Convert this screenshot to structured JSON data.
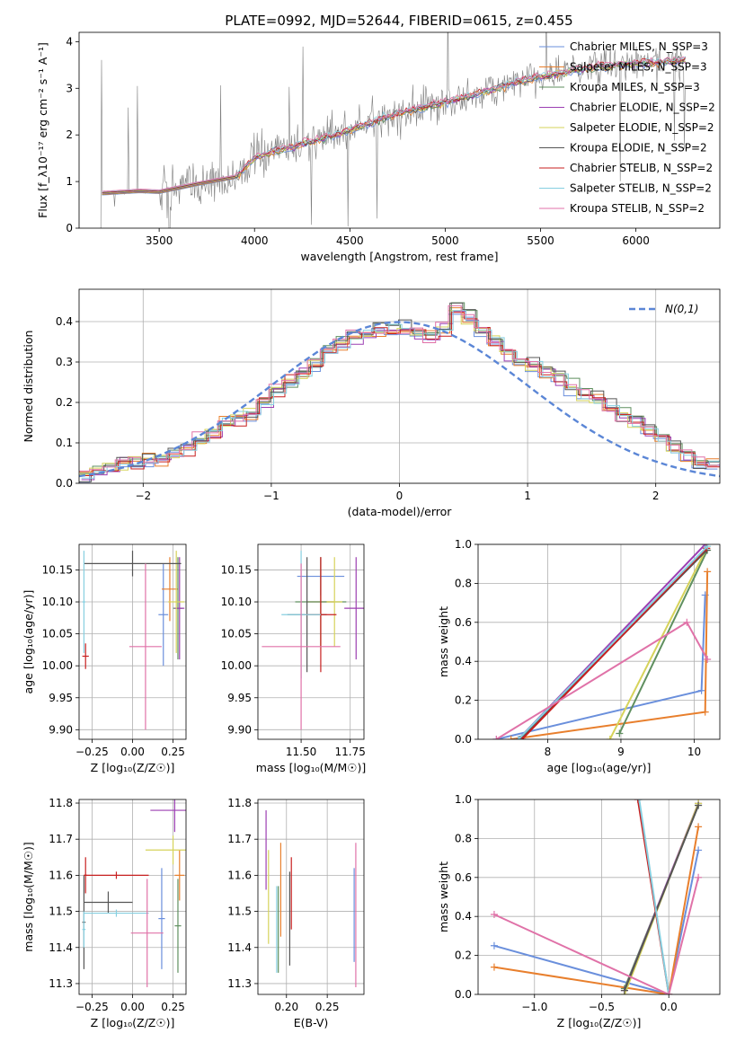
{
  "palette": [
    "#6a8fdc",
    "#e87f2d",
    "#5f8f5f",
    "#9c3fb2",
    "#d6d35a",
    "#555555",
    "#c71f1f",
    "#86cfe0",
    "#e072a8",
    "#7f7f7f",
    "#b8de6f"
  ],
  "chart_data": [
    {
      "id": "spectrum",
      "type": "line",
      "title": "PLATE=0992, MJD=52644, FIBERID=0615, z=0.455",
      "xlabel": "wavelength [Angstrom, rest frame]",
      "ylabel": "Flux [f_λ10⁻¹⁷ erg cm⁻² s⁻¹ A⁻¹]",
      "xlim": [
        3080,
        6440
      ],
      "ylim": [
        0,
        4.2
      ],
      "xticks": [
        3500,
        4000,
        4500,
        5000,
        5500,
        6000
      ],
      "yticks": [
        0,
        1,
        2,
        3,
        4
      ],
      "legend_position": "top-right",
      "series": [
        {
          "name": "Chabrier MILES, N_SSP=3"
        },
        {
          "name": "Salpeter MILES, N_SSP=3"
        },
        {
          "name": "Kroupa MILES, N_SSP=3"
        },
        {
          "name": "Chabrier ELODIE, N_SSP=2"
        },
        {
          "name": "Salpeter ELODIE, N_SSP=2"
        },
        {
          "name": "Kroupa ELODIE, N_SSP=2"
        },
        {
          "name": "Chabrier STELIB, N_SSP=2"
        },
        {
          "name": "Salpeter STELIB, N_SSP=2"
        },
        {
          "name": "Kroupa STELIB, N_SSP=2"
        }
      ],
      "model_x": [
        3200,
        3400,
        3500,
        3700,
        3900,
        4000,
        4100,
        4300,
        4500,
        4700,
        4900,
        5100,
        5300,
        5500,
        5700,
        5900,
        6100,
        6250
      ],
      "model_y": [
        0.75,
        0.8,
        0.78,
        0.95,
        1.1,
        1.5,
        1.65,
        1.85,
        2.1,
        2.4,
        2.6,
        2.8,
        3.05,
        3.25,
        3.4,
        3.5,
        3.55,
        3.6
      ]
    },
    {
      "id": "residuals",
      "type": "histogram",
      "xlabel": "(data-model)/error",
      "ylabel": "Normed distribution",
      "xlim": [
        -2.5,
        2.5
      ],
      "ylim": [
        0,
        0.48
      ],
      "xticks": [
        -2,
        -1,
        0,
        1,
        2
      ],
      "yticks": [
        0.0,
        0.1,
        0.2,
        0.3,
        0.4
      ],
      "grid": true,
      "legend_position": "top-right",
      "reference_curve": "N(0,1)",
      "bin_width": 0.1,
      "approx_values": [
        0.02,
        0.03,
        0.04,
        0.05,
        0.05,
        0.06,
        0.06,
        0.07,
        0.09,
        0.11,
        0.13,
        0.15,
        0.16,
        0.17,
        0.2,
        0.23,
        0.25,
        0.27,
        0.3,
        0.33,
        0.35,
        0.36,
        0.37,
        0.38,
        0.38,
        0.38,
        0.37,
        0.36,
        0.38,
        0.43,
        0.41,
        0.38,
        0.35,
        0.32,
        0.3,
        0.29,
        0.27,
        0.26,
        0.24,
        0.22,
        0.21,
        0.19,
        0.17,
        0.16,
        0.13,
        0.11,
        0.09,
        0.07,
        0.05,
        0.04
      ]
    },
    {
      "id": "age-vs-Z",
      "type": "errorbar",
      "xlabel": "Z [log₁₀(Z/Z☉)]",
      "ylabel": "age  [log₁₀(age/yr)]",
      "xlim": [
        -0.33,
        0.33
      ],
      "ylim": [
        9.885,
        10.19
      ],
      "xticks": [
        -0.25,
        0.0,
        0.25
      ],
      "yticks": [
        9.9,
        9.95,
        10.0,
        10.05,
        10.1,
        10.15
      ],
      "grid": true,
      "points": [
        {
          "x": 0.19,
          "xerr": 0.03,
          "y": 10.08,
          "yerr": 0.08,
          "c": 0
        },
        {
          "x": 0.23,
          "xerr": 0.05,
          "y": 10.12,
          "yerr": 0.05,
          "c": 1
        },
        {
          "x": 0.28,
          "xerr": 0.03,
          "y": 10.09,
          "yerr": 0.08,
          "c": 2
        },
        {
          "x": 0.29,
          "xerr": 0.03,
          "y": 10.09,
          "yerr": 0.08,
          "c": 3
        },
        {
          "x": 0.27,
          "xerr": 0.05,
          "y": 10.1,
          "yerr": 0.08,
          "c": 4
        },
        {
          "x": 0.0,
          "xerr": 0.3,
          "y": 10.16,
          "yerr": 0.02,
          "c": 5
        },
        {
          "x": -0.29,
          "xerr": 0.02,
          "y": 10.015,
          "yerr": 0.02,
          "c": 6
        },
        {
          "x": -0.3,
          "xerr": 0.01,
          "y": 10.1,
          "yerr": 0.08,
          "c": 7
        },
        {
          "x": 0.08,
          "xerr": 0.1,
          "y": 10.03,
          "yerr": 0.13,
          "c": 8
        }
      ]
    },
    {
      "id": "age-vs-mass",
      "type": "errorbar",
      "xlabel": "mass [log₁₀(M/M☉)]",
      "ylabel": "",
      "xlim": [
        11.28,
        11.82
      ],
      "ylim": [
        9.885,
        10.19
      ],
      "xticks": [
        11.5,
        11.75
      ],
      "yticks": [
        9.9,
        9.95,
        10.0,
        10.05,
        10.1,
        10.15
      ],
      "grid": true,
      "points": [
        {
          "x": 11.6,
          "xerr": 0.12,
          "y": 10.14,
          "yerr": 0.03,
          "c": 0
        },
        {
          "x": 11.6,
          "xerr": 0.07,
          "y": 10.1,
          "yerr": 0.07,
          "c": 1
        },
        {
          "x": 11.6,
          "xerr": 0.13,
          "y": 10.1,
          "yerr": 0.07,
          "c": 2
        },
        {
          "x": 11.78,
          "xerr": 0.06,
          "y": 10.09,
          "yerr": 0.08,
          "c": 3
        },
        {
          "x": 11.67,
          "xerr": 0.04,
          "y": 10.1,
          "yerr": 0.07,
          "c": 4
        },
        {
          "x": 11.53,
          "xerr": 0.1,
          "y": 10.08,
          "yerr": 0.09,
          "c": 5
        },
        {
          "x": 11.6,
          "xerr": 0.08,
          "y": 10.08,
          "yerr": 0.09,
          "c": 6
        },
        {
          "x": 11.5,
          "xerr": 0.1,
          "y": 10.08,
          "yerr": 0.1,
          "c": 7
        },
        {
          "x": 11.5,
          "xerr": 0.2,
          "y": 10.03,
          "yerr": 0.13,
          "c": 8
        }
      ]
    },
    {
      "id": "weight-vs-age",
      "type": "line",
      "xlabel": "age  [log₁₀(age/yr)]",
      "ylabel": "mass weight",
      "xlim": [
        7.05,
        10.35
      ],
      "ylim": [
        0,
        1
      ],
      "xticks": [
        8,
        9,
        10
      ],
      "yticks": [
        0.0,
        0.2,
        0.4,
        0.6,
        0.8,
        1.0
      ],
      "grid": true,
      "series": [
        {
          "c": 0,
          "x": [
            7.3,
            10.1,
            10.15
          ],
          "y": [
            0.0,
            0.25,
            0.74
          ]
        },
        {
          "c": 1,
          "x": [
            7.5,
            10.15,
            10.18
          ],
          "y": [
            0.0,
            0.14,
            0.86
          ]
        },
        {
          "c": 2,
          "x": [
            8.98,
            10.18
          ],
          "y": [
            0.03,
            0.97
          ]
        },
        {
          "c": 3,
          "x": [
            7.6,
            10.15
          ],
          "y": [
            0.0,
            1.0
          ]
        },
        {
          "c": 4,
          "x": [
            8.85,
            10.17
          ],
          "y": [
            0.0,
            0.98
          ]
        },
        {
          "c": 5,
          "x": [
            7.62,
            10.17
          ],
          "y": [
            0.0,
            0.97
          ]
        },
        {
          "c": 6,
          "x": [
            7.65,
            10.17
          ],
          "y": [
            0.0,
            0.98
          ]
        },
        {
          "c": 7,
          "x": [
            7.6,
            10.18
          ],
          "y": [
            0.0,
            0.99
          ]
        },
        {
          "c": 8,
          "x": [
            7.3,
            9.9,
            10.18
          ],
          "y": [
            0.0,
            0.6,
            0.41
          ]
        }
      ]
    },
    {
      "id": "mass-vs-Z",
      "type": "errorbar",
      "xlabel": "Z [log₁₀(Z/Z☉)]",
      "ylabel": "mass [log₁₀(M/M☉)]",
      "xlim": [
        -0.33,
        0.33
      ],
      "ylim": [
        11.27,
        11.81
      ],
      "xticks": [
        -0.25,
        0.0,
        0.25
      ],
      "yticks": [
        11.3,
        11.4,
        11.5,
        11.6,
        11.7,
        11.8
      ],
      "grid": true,
      "points": [
        {
          "x": 0.18,
          "xerr": 0.02,
          "y": 11.48,
          "yerr": 0.14,
          "c": 0
        },
        {
          "x": 0.29,
          "xerr": 0.03,
          "y": 11.6,
          "yerr": 0.07,
          "c": 1
        },
        {
          "x": 0.28,
          "xerr": 0.02,
          "y": 11.46,
          "yerr": 0.13,
          "c": 2
        },
        {
          "x": 0.26,
          "xerr": 0.15,
          "y": 11.78,
          "yerr": 0.06,
          "c": 3
        },
        {
          "x": 0.25,
          "xerr": 0.17,
          "y": 11.67,
          "yerr": 0.04,
          "c": 4
        },
        {
          "x": -0.3,
          "xerr": 0.01,
          "y": 11.47,
          "yerr": 0.13,
          "c": 5
        },
        {
          "x": -0.15,
          "xerr": 0.15,
          "y": 11.525,
          "yerr": 0.03,
          "c": 5
        },
        {
          "x": -0.29,
          "xerr": 0.01,
          "y": 11.6,
          "yerr": 0.05,
          "c": 6
        },
        {
          "x": -0.1,
          "xerr": 0.2,
          "y": 11.6,
          "yerr": 0.01,
          "c": 6
        },
        {
          "x": -0.3,
          "xerr": 0.01,
          "y": 11.45,
          "yerr": 0.05,
          "c": 7
        },
        {
          "x": -0.1,
          "xerr": 0.2,
          "y": 11.495,
          "yerr": 0.01,
          "c": 7
        },
        {
          "x": 0.09,
          "xerr": 0.1,
          "y": 11.44,
          "yerr": 0.15,
          "c": 8
        }
      ]
    },
    {
      "id": "mass-vs-ebv",
      "type": "errorbar",
      "xlabel": "E(B-V)",
      "ylabel": "",
      "xlim": [
        0.165,
        0.295
      ],
      "ylim": [
        11.27,
        11.81
      ],
      "xticks": [
        0.2,
        0.25
      ],
      "yticks": [
        11.3,
        11.4,
        11.5,
        11.6,
        11.7,
        11.8
      ],
      "grid": true,
      "points": [
        {
          "x": 0.283,
          "y": 11.49,
          "yerr": 0.13,
          "c": 0
        },
        {
          "x": 0.193,
          "y": 11.56,
          "yerr": 0.13,
          "c": 1
        },
        {
          "x": 0.19,
          "y": 11.45,
          "yerr": 0.12,
          "c": 2
        },
        {
          "x": 0.175,
          "y": 11.67,
          "yerr": 0.11,
          "c": 3
        },
        {
          "x": 0.178,
          "y": 11.54,
          "yerr": 0.13,
          "c": 4
        },
        {
          "x": 0.204,
          "y": 11.48,
          "yerr": 0.13,
          "c": 5
        },
        {
          "x": 0.206,
          "y": 11.55,
          "yerr": 0.1,
          "c": 6
        },
        {
          "x": 0.188,
          "y": 11.45,
          "yerr": 0.12,
          "c": 7
        },
        {
          "x": 0.285,
          "y": 11.49,
          "yerr": 0.2,
          "c": 8
        }
      ]
    },
    {
      "id": "weight-vs-Z",
      "type": "line",
      "xlabel": "Z [log₁₀(Z/Z☉)]",
      "ylabel": "mass weight",
      "xlim": [
        -1.42,
        0.38
      ],
      "ylim": [
        0,
        1
      ],
      "xticks": [
        -1.0,
        -0.5,
        0.0
      ],
      "yticks": [
        0.0,
        0.2,
        0.4,
        0.6,
        0.8,
        1.0
      ],
      "grid": true,
      "series": [
        {
          "c": 0,
          "x": [
            -1.3,
            0.0,
            0.22
          ],
          "y": [
            0.25,
            0.0,
            0.74
          ]
        },
        {
          "c": 1,
          "x": [
            -1.3,
            0.0,
            0.22
          ],
          "y": [
            0.14,
            0.0,
            0.86
          ]
        },
        {
          "c": 2,
          "x": [
            -0.33,
            0.22
          ],
          "y": [
            0.03,
            0.97
          ]
        },
        {
          "c": 3,
          "x": [
            -0.33,
            0.22
          ],
          "y": [
            0.02,
            0.98
          ]
        },
        {
          "c": 4,
          "x": [
            -0.33,
            0.22
          ],
          "y": [
            0.0,
            0.98
          ]
        },
        {
          "c": 5,
          "x": [
            -0.33,
            0.22
          ],
          "y": [
            0.02,
            0.97
          ]
        },
        {
          "c": 6,
          "x": [
            -0.23,
            0.0
          ],
          "y": [
            1.0,
            0.0
          ]
        },
        {
          "c": 7,
          "x": [
            -0.22,
            0.0
          ],
          "y": [
            1.0,
            0.0
          ]
        },
        {
          "c": 8,
          "x": [
            -1.3,
            0.0,
            0.22
          ],
          "y": [
            0.41,
            0.0,
            0.6
          ]
        }
      ]
    }
  ]
}
